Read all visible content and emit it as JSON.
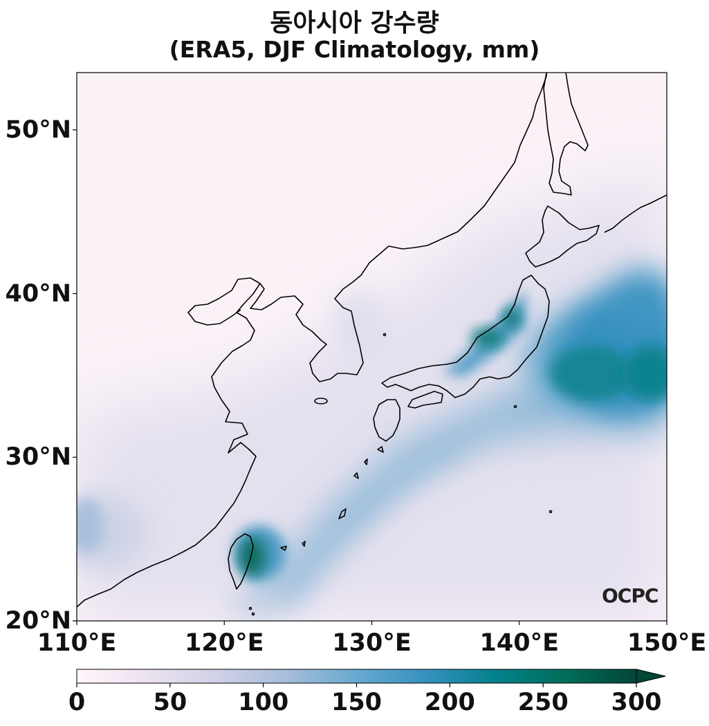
{
  "title": {
    "line1": "동아시아 강수량",
    "line2": "(ERA5, DJF Climatology, mm)"
  },
  "map": {
    "projection": "PlateCarree",
    "lon_range": [
      110,
      150
    ],
    "lat_range": [
      20,
      53.5
    ],
    "x_ticks": [
      {
        "value": 110,
        "label": "110°E"
      },
      {
        "value": 120,
        "label": "120°E"
      },
      {
        "value": 130,
        "label": "130°E"
      },
      {
        "value": 140,
        "label": "140°E"
      },
      {
        "value": 150,
        "label": "150°E"
      }
    ],
    "y_ticks": [
      {
        "value": 20,
        "label": "20°N"
      },
      {
        "value": 30,
        "label": "30°N"
      },
      {
        "value": 40,
        "label": "40°N"
      },
      {
        "value": 50,
        "label": "50°N"
      }
    ],
    "coastline_color": "#000000",
    "logo": "OCPC"
  },
  "colorbar": {
    "cmap": "PuBuGn",
    "min": 0,
    "max": 300,
    "extend": "max",
    "ticks": [
      {
        "value": 0,
        "label": "0"
      },
      {
        "value": 50,
        "label": "50"
      },
      {
        "value": 100,
        "label": "100"
      },
      {
        "value": 150,
        "label": "150"
      },
      {
        "value": 200,
        "label": "200"
      },
      {
        "value": 250,
        "label": "250"
      },
      {
        "value": 300,
        "label": "300"
      }
    ],
    "stops": [
      "#fff7fb",
      "#ece2f0",
      "#d0d1e6",
      "#a6bddb",
      "#67a9cf",
      "#3690c0",
      "#02818a",
      "#016c59",
      "#014636"
    ]
  },
  "precip_features": [
    {
      "name": "japan-sea-coast-max",
      "lon": 138.5,
      "lat": 37.8,
      "value": 260
    },
    {
      "name": "pacific-storm-track",
      "lon": 145,
      "lat": 35,
      "value": 240
    },
    {
      "name": "taiwan-north-max",
      "lon": 121.7,
      "lat": 24,
      "value": 280
    }
  ]
}
